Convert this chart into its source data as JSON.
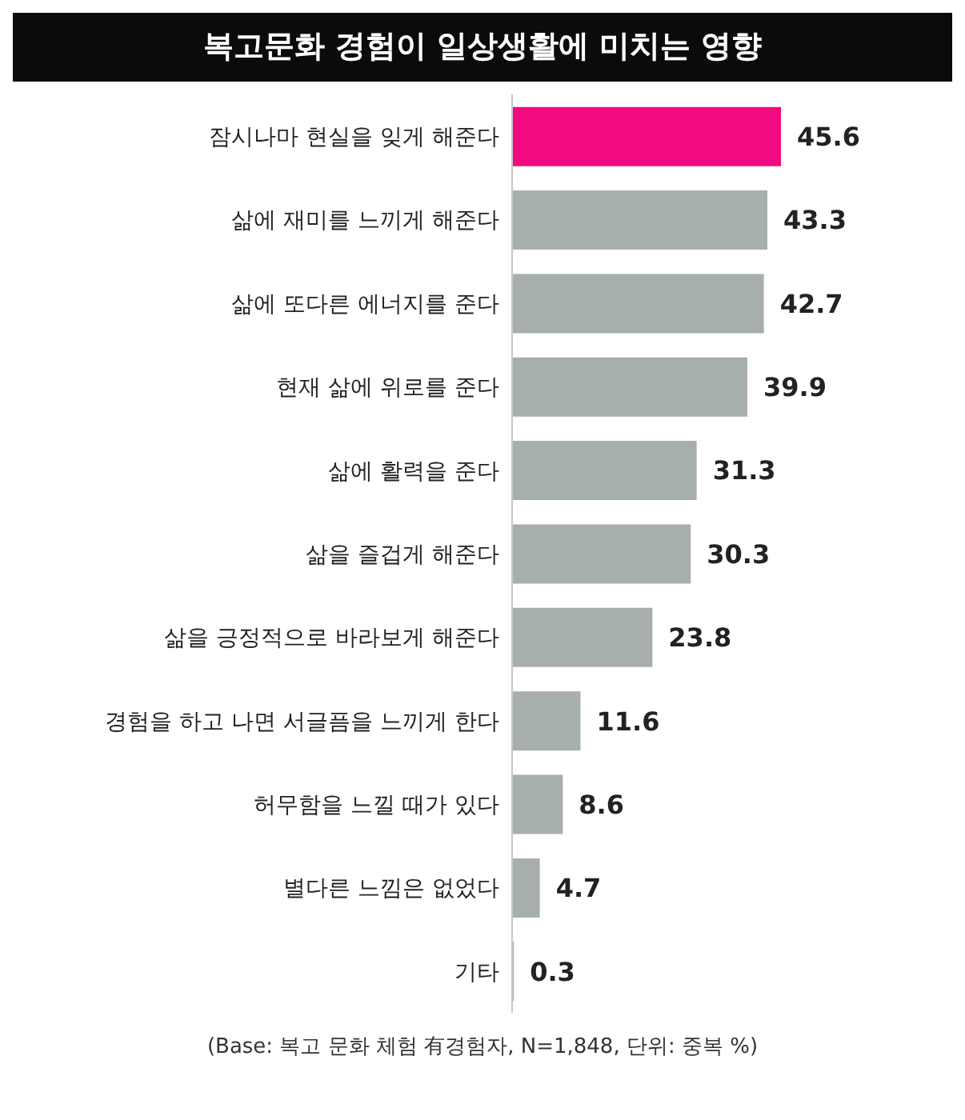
{
  "chart_data": {
    "type": "bar",
    "orientation": "horizontal",
    "data_labels": true,
    "title": "복고문화 경험이 일상생활에 미치는 영향",
    "categories": [
      "잠시나마 현실을 잊게 해준다",
      "삶에 재미를 느끼게 해준다",
      "삶에 또다른 에너지를 준다",
      "현재 삶에 위로를 준다",
      "삶에 활력을 준다",
      "삶을 즐겁게 해준다",
      "삶을 긍정적으로 바라보게 해준다",
      "경험을 하고 나면 서글픔을 느끼게 한다",
      "허무함을 느낄 때가 있다",
      "별다른 느낌은 없었다",
      "기타"
    ],
    "values": [
      45.6,
      43.3,
      42.7,
      39.9,
      31.3,
      30.3,
      23.8,
      11.6,
      8.6,
      4.7,
      0.3
    ],
    "colors": [
      "#f20a80",
      "#a7afad",
      "#a7afad",
      "#a7afad",
      "#a7afad",
      "#a7afad",
      "#a7afad",
      "#a7afad",
      "#a7afad",
      "#a7afad",
      "#a7afad"
    ],
    "annotations": [
      "(Base: 복고 문화 체험 有경험자, N=1,848, 단위: 중복 %)"
    ]
  }
}
